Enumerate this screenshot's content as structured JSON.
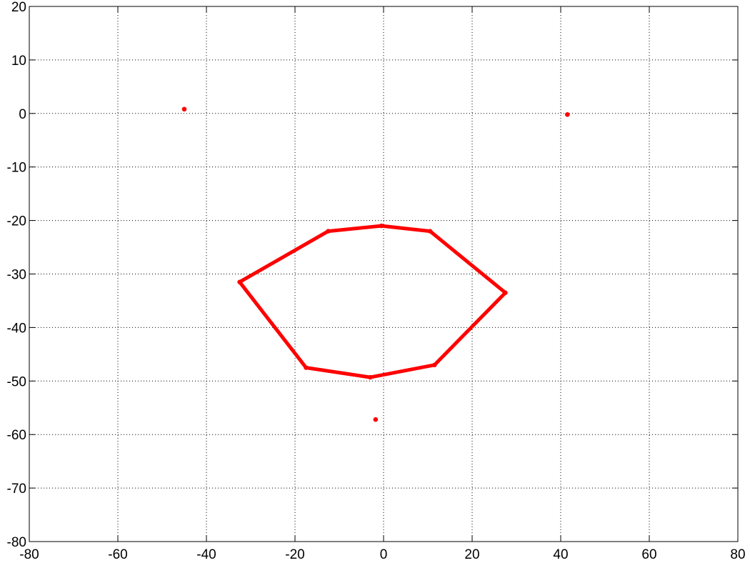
{
  "chart_data": {
    "type": "scatter",
    "title": "",
    "xlabel": "",
    "ylabel": "",
    "xlim": [
      -80,
      80
    ],
    "ylim": [
      -80,
      20
    ],
    "grid": true,
    "grid_style": "dotted",
    "x_ticks": [
      -80,
      -60,
      -40,
      -20,
      0,
      20,
      40,
      60,
      80
    ],
    "y_ticks": [
      20,
      10,
      0,
      -10,
      -20,
      -30,
      -40,
      -50,
      -60,
      -70,
      -80
    ],
    "x_tick_labels": [
      "-80",
      "-60",
      "-40",
      "-20",
      "0",
      "20",
      "40",
      "60",
      "80"
    ],
    "y_tick_labels": [
      "20",
      "10",
      "0",
      "-10",
      "-20",
      "-30",
      "-40",
      "-50",
      "-60",
      "-70",
      "-80"
    ],
    "series": [
      {
        "kind": "polygon",
        "color": "#ff0000",
        "points": [
          [
            -32.5,
            -31.5
          ],
          [
            -12.5,
            -22.0
          ],
          [
            -0.5,
            -21.0
          ],
          [
            10.5,
            -22.0
          ],
          [
            27.5,
            -33.5
          ],
          [
            11.5,
            -47.0
          ],
          [
            -3.0,
            -49.3
          ],
          [
            -17.5,
            -47.5
          ]
        ]
      },
      {
        "kind": "points",
        "color": "#ff0000",
        "points": [
          [
            -45.0,
            0.8
          ],
          [
            41.5,
            -0.2
          ],
          [
            -1.8,
            -57.2
          ]
        ]
      }
    ]
  }
}
